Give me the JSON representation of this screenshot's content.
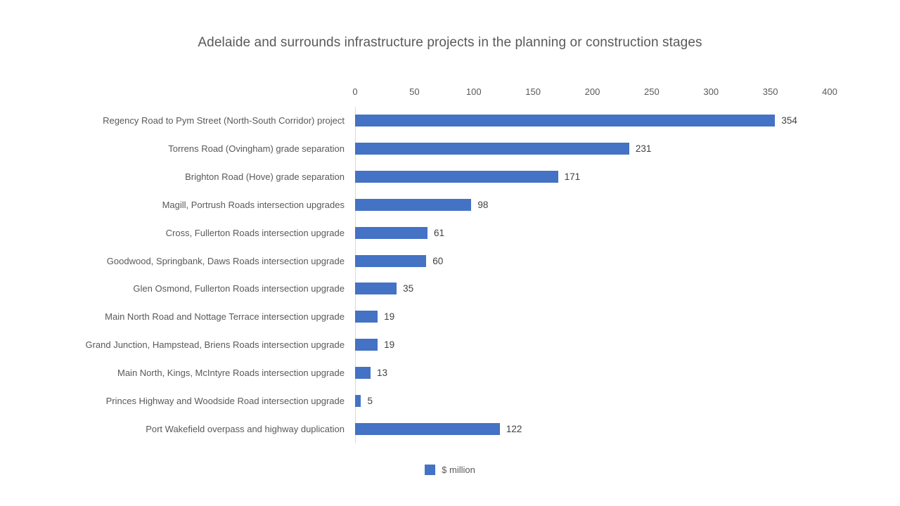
{
  "chart_data": {
    "type": "bar",
    "orientation": "horizontal",
    "title": "Adelaide and surrounds infrastructure projects in the planning or construction stages",
    "categories": [
      "Regency Road to Pym Street (North-South Corridor) project",
      "Torrens Road (Ovingham) grade separation",
      "Brighton Road (Hove) grade separation",
      "Magill, Portrush Roads intersection upgrades",
      "Cross, Fullerton Roads intersection upgrade",
      "Goodwood, Springbank, Daws Roads intersection upgrade",
      "Glen Osmond, Fullerton Roads intersection upgrade",
      "Main North Road and Nottage Terrace intersection upgrade",
      "Grand Junction, Hampstead, Briens Roads intersection upgrade",
      "Main North, Kings, McIntyre Roads intersection upgrade",
      "Princes Highway and Woodside Road intersection upgrade",
      "Port Wakefield overpass and highway duplication"
    ],
    "series": [
      {
        "name": "$ million",
        "values": [
          354,
          231,
          171,
          98,
          61,
          60,
          35,
          19,
          19,
          13,
          5,
          122
        ]
      }
    ],
    "x_ticks": [
      0,
      50,
      100,
      150,
      200,
      250,
      300,
      350,
      400
    ],
    "xlim": [
      0,
      400
    ],
    "xlabel": "",
    "ylabel": "",
    "bar_color": "#4472C4",
    "value_labels_shown": true,
    "grid": false,
    "axis_line_color": "#d9d9d9",
    "legend_position": "bottom"
  },
  "legend": {
    "label": "$ million",
    "swatch_color": "#4472C4"
  }
}
